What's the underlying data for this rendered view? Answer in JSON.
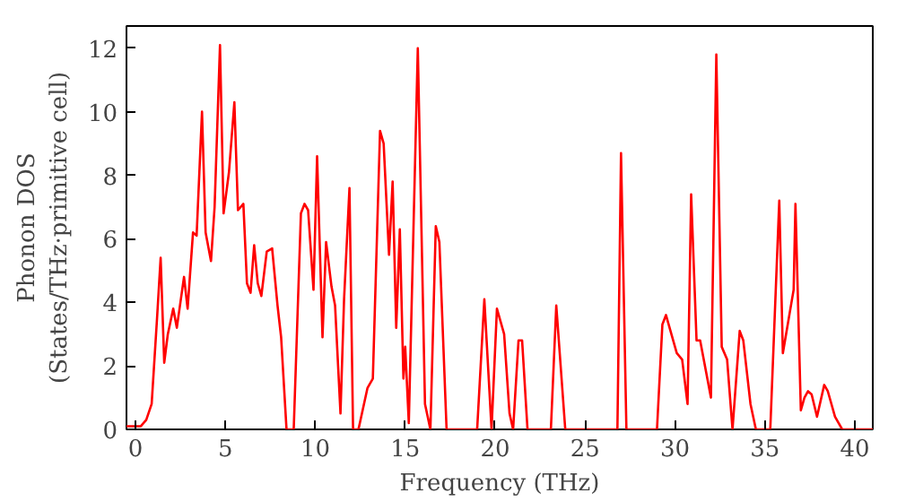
{
  "chart_data": {
    "type": "line",
    "xlabel": "Frequency (THz)",
    "ylabel": "Phonon DOS\n(States/THz·primitive cell)",
    "xlim": [
      -0.5,
      41
    ],
    "ylim": [
      0,
      12.7
    ],
    "xticks": [
      0,
      5,
      10,
      15,
      20,
      25,
      30,
      35,
      40
    ],
    "yticks": [
      0,
      2,
      4,
      6,
      8,
      10,
      12
    ],
    "grid": false,
    "marker": "none",
    "line_style": "solid",
    "series": [
      {
        "color": "#ff0000",
        "x": [
          -0.5,
          0,
          0.3,
          0.6,
          0.9,
          1.2,
          1.4,
          1.6,
          1.8,
          2.1,
          2.3,
          2.7,
          2.9,
          3.2,
          3.4,
          3.7,
          3.9,
          4.2,
          4.4,
          4.7,
          4.9,
          5.2,
          5.5,
          5.7,
          6.0,
          6.2,
          6.4,
          6.6,
          6.8,
          7.0,
          7.3,
          7.6,
          7.9,
          8.1,
          8.4,
          8.8,
          9.2,
          9.4,
          9.6,
          9.9,
          10.1,
          10.4,
          10.6,
          10.9,
          11.1,
          11.4,
          11.6,
          11.9,
          12.1,
          12.4,
          12.9,
          13.2,
          13.6,
          13.8,
          14.1,
          14.3,
          14.5,
          14.7,
          14.9,
          15.0,
          15.2,
          15.7,
          16.1,
          16.4,
          16.7,
          16.9,
          17.3,
          19.0,
          19.4,
          19.8,
          20.1,
          20.5,
          20.8,
          21.0,
          21.3,
          21.5,
          21.8,
          23.1,
          23.4,
          23.9,
          26.8,
          27.0,
          27.3,
          29.0,
          29.3,
          29.5,
          30.1,
          30.4,
          30.7,
          30.9,
          31.2,
          31.4,
          32.0,
          32.3,
          32.6,
          32.9,
          33.2,
          33.6,
          33.8,
          34.2,
          34.5,
          35.3,
          35.8,
          36.0,
          36.3,
          36.6,
          36.7,
          37.0,
          37.2,
          37.4,
          37.6,
          37.9,
          38.3,
          38.5,
          38.9,
          39.3,
          41
        ],
        "values": [
          0.1,
          0.1,
          0.1,
          0.3,
          0.8,
          3.5,
          5.4,
          2.1,
          3.0,
          3.8,
          3.2,
          4.8,
          3.8,
          6.2,
          6.1,
          10.0,
          6.2,
          5.3,
          7.0,
          12.1,
          6.8,
          8.1,
          10.3,
          6.9,
          7.1,
          4.6,
          4.3,
          5.8,
          4.6,
          4.2,
          5.6,
          5.7,
          3.9,
          2.9,
          0,
          0,
          6.8,
          7.1,
          6.9,
          4.4,
          8.6,
          2.9,
          5.9,
          4.5,
          3.9,
          0.5,
          4.1,
          7.6,
          0,
          0,
          1.3,
          1.6,
          9.4,
          9.0,
          5.5,
          7.8,
          3.2,
          6.3,
          1.6,
          2.6,
          0.2,
          12.0,
          0.8,
          0,
          6.4,
          5.9,
          0,
          0,
          4.1,
          0,
          3.8,
          3.0,
          0.5,
          0,
          2.8,
          2.8,
          0,
          0,
          3.9,
          0,
          0,
          8.7,
          0,
          0,
          3.3,
          3.6,
          2.4,
          2.2,
          0.8,
          7.4,
          2.8,
          2.8,
          1.0,
          11.8,
          2.6,
          2.2,
          0,
          3.1,
          2.8,
          0.8,
          0,
          0,
          7.2,
          2.4,
          3.4,
          4.4,
          7.1,
          0.6,
          1.0,
          1.2,
          1.1,
          0.4,
          1.4,
          1.2,
          0.4,
          0,
          0
        ]
      }
    ]
  }
}
